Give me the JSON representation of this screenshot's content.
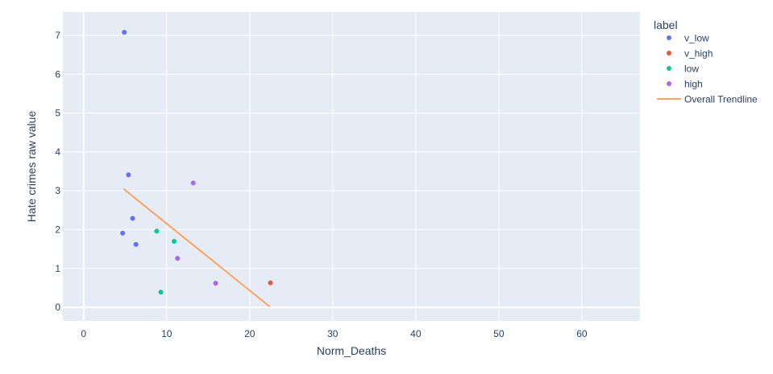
{
  "chart_data": {
    "type": "scatter",
    "title": "",
    "xlabel": "Norm_Deaths",
    "ylabel": "Hate crimes raw value",
    "xlim": [
      -2.5,
      67
    ],
    "ylim": [
      -0.35,
      7.6
    ],
    "x_ticks": [
      0,
      10,
      20,
      30,
      40,
      50,
      60
    ],
    "y_ticks": [
      0,
      1,
      2,
      3,
      4,
      5,
      6,
      7
    ],
    "grid": true,
    "legend_title": "label",
    "legend_position": "top-right",
    "series": [
      {
        "name": "v_low",
        "color": "#636efa",
        "mode": "markers",
        "x": [
          4.9,
          5.4,
          5.9,
          4.7,
          6.3
        ],
        "y": [
          7.08,
          3.41,
          2.29,
          1.91,
          1.62
        ]
      },
      {
        "name": "v_high",
        "color": "#ef553b",
        "mode": "markers",
        "x": [
          22.5
        ],
        "y": [
          0.63
        ]
      },
      {
        "name": "low",
        "color": "#00cc96",
        "mode": "markers",
        "x": [
          8.8,
          10.9,
          9.3
        ],
        "y": [
          1.96,
          1.7,
          0.39
        ]
      },
      {
        "name": "high",
        "color": "#ab63fa",
        "mode": "markers",
        "x": [
          13.2,
          11.3,
          15.9
        ],
        "y": [
          3.2,
          1.26,
          0.62
        ]
      },
      {
        "name": "Overall Trendline",
        "color": "#ffa15a",
        "mode": "line",
        "x": [
          4.8,
          22.4
        ],
        "y": [
          3.05,
          0.02
        ]
      }
    ]
  }
}
